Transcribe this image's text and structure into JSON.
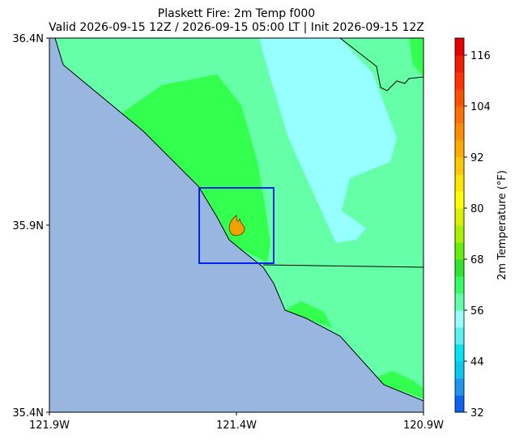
{
  "title": "Plaskett Fire: 2m Temp f000",
  "subtitle": "Valid 2026-09-15 12Z / 2026-09-15 05:00 LT | Init 2026-09-15 12Z",
  "map": {
    "xlim": [
      -121.9,
      -120.9
    ],
    "ylim": [
      35.4,
      36.4
    ],
    "xticks": [
      {
        "value": -121.9,
        "label": "121.9W"
      },
      {
        "value": -121.4,
        "label": "121.4W"
      },
      {
        "value": -120.9,
        "label": "120.9W"
      }
    ],
    "yticks": [
      {
        "value": 35.4,
        "label": "35.4N"
      },
      {
        "value": 35.9,
        "label": "35.9N"
      },
      {
        "value": 36.4,
        "label": "36.4N"
      }
    ]
  },
  "colorbar": {
    "label": "2m Temperature (°F)",
    "range": [
      32,
      120
    ],
    "ticks": [
      32,
      44,
      56,
      68,
      80,
      92,
      104,
      116
    ],
    "colors": [
      "#0a64f0",
      "#1e96f0",
      "#0ac8f0",
      "#00e6f0",
      "#5af0f0",
      "#96ffff",
      "#64ffaa",
      "#32ff64",
      "#2de62d",
      "#64f00a",
      "#aaf000",
      "#dcf000",
      "#ffff00",
      "#ffe600",
      "#ffc800",
      "#ffaa00",
      "#ff8c00",
      "#ff6e00",
      "#ff5000",
      "#ff3200",
      "#f01e00",
      "#e60000"
    ]
  }
}
